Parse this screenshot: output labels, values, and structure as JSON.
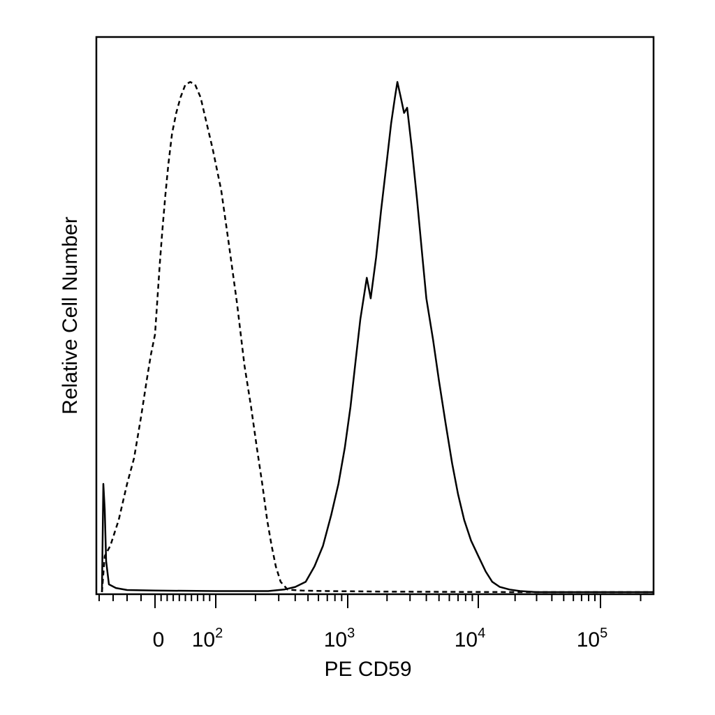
{
  "chart_data": {
    "type": "line",
    "title": "",
    "xlabel": "PE CD59",
    "ylabel": "Relative Cell Number",
    "x_scale": "biexponential",
    "xlim": [
      -40,
      250000
    ],
    "ylim": [
      0,
      1
    ],
    "grid": false,
    "legend": "none",
    "x_tick_labels": [
      {
        "value": 0,
        "base": "0",
        "exp": ""
      },
      {
        "value": 100,
        "base": "10",
        "exp": "2"
      },
      {
        "value": 1000,
        "base": "10",
        "exp": "3"
      },
      {
        "value": 10000,
        "base": "10",
        "exp": "4"
      },
      {
        "value": 100000,
        "base": "10",
        "exp": "5"
      }
    ],
    "series": [
      {
        "style": "dashed",
        "color": "#000000",
        "points": [
          [
            -38,
            0.0
          ],
          [
            -36,
            0.07
          ],
          [
            -32,
            0.09
          ],
          [
            -26,
            0.14
          ],
          [
            -20,
            0.21
          ],
          [
            -15,
            0.26
          ],
          [
            -10,
            0.34
          ],
          [
            -6,
            0.41
          ],
          [
            -3,
            0.46
          ],
          [
            0,
            0.5
          ],
          [
            4,
            0.57
          ],
          [
            8,
            0.64
          ],
          [
            12,
            0.7
          ],
          [
            17,
            0.77
          ],
          [
            22,
            0.83
          ],
          [
            28,
            0.89
          ],
          [
            35,
            0.93
          ],
          [
            42,
            0.96
          ],
          [
            50,
            0.985
          ],
          [
            58,
            0.99
          ],
          [
            66,
            0.985
          ],
          [
            75,
            0.96
          ],
          [
            85,
            0.91
          ],
          [
            95,
            0.86
          ],
          [
            110,
            0.78
          ],
          [
            125,
            0.68
          ],
          [
            145,
            0.56
          ],
          [
            165,
            0.44
          ],
          [
            185,
            0.36
          ],
          [
            205,
            0.28
          ],
          [
            225,
            0.21
          ],
          [
            245,
            0.14
          ],
          [
            265,
            0.09
          ],
          [
            285,
            0.05
          ],
          [
            310,
            0.02
          ],
          [
            350,
            0.005
          ],
          [
            450,
            0.003
          ],
          [
            700,
            0.002
          ],
          [
            2000,
            0.001
          ],
          [
            20000,
            0.0
          ],
          [
            250000,
            0.0
          ]
        ]
      },
      {
        "style": "solid",
        "color": "#000000",
        "points": [
          [
            -38,
            0.0
          ],
          [
            -37,
            0.21
          ],
          [
            -36,
            0.16
          ],
          [
            -35,
            0.06
          ],
          [
            -33,
            0.015
          ],
          [
            -28,
            0.008
          ],
          [
            -20,
            0.004
          ],
          [
            0,
            0.003
          ],
          [
            100,
            0.002
          ],
          [
            250,
            0.002
          ],
          [
            330,
            0.005
          ],
          [
            400,
            0.01
          ],
          [
            480,
            0.02
          ],
          [
            560,
            0.05
          ],
          [
            650,
            0.09
          ],
          [
            750,
            0.15
          ],
          [
            850,
            0.21
          ],
          [
            950,
            0.28
          ],
          [
            1050,
            0.36
          ],
          [
            1150,
            0.45
          ],
          [
            1250,
            0.53
          ],
          [
            1400,
            0.61
          ],
          [
            1500,
            0.57
          ],
          [
            1650,
            0.65
          ],
          [
            1800,
            0.74
          ],
          [
            2000,
            0.84
          ],
          [
            2150,
            0.91
          ],
          [
            2300,
            0.96
          ],
          [
            2400,
            0.99
          ],
          [
            2550,
            0.96
          ],
          [
            2700,
            0.93
          ],
          [
            2850,
            0.94
          ],
          [
            3100,
            0.86
          ],
          [
            3400,
            0.76
          ],
          [
            3700,
            0.66
          ],
          [
            4000,
            0.57
          ],
          [
            4500,
            0.49
          ],
          [
            5000,
            0.41
          ],
          [
            5600,
            0.33
          ],
          [
            6300,
            0.25
          ],
          [
            7000,
            0.19
          ],
          [
            7800,
            0.14
          ],
          [
            8800,
            0.1
          ],
          [
            10000,
            0.07
          ],
          [
            11500,
            0.04
          ],
          [
            13000,
            0.02
          ],
          [
            15000,
            0.01
          ],
          [
            18000,
            0.005
          ],
          [
            22000,
            0.002
          ],
          [
            30000,
            0.0
          ],
          [
            250000,
            0.0
          ]
        ]
      }
    ]
  }
}
